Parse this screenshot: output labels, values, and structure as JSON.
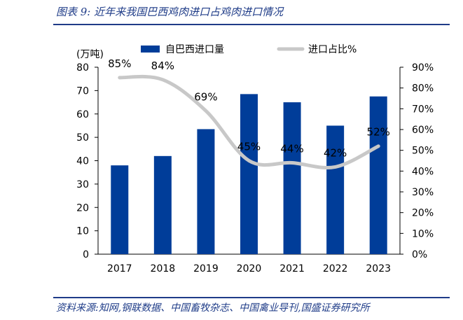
{
  "figure": {
    "title": "图表 9:  近年来我国巴西鸡肉进口占鸡肉进口情况",
    "source": "资料来源:知网,钢联数据、中国畜牧杂志、中国禽业导刊,国盛证券研究所"
  },
  "chart_data": {
    "type": "bar",
    "categories": [
      "2017",
      "2018",
      "2019",
      "2020",
      "2021",
      "2022",
      "2023"
    ],
    "y_unit_label": "(万吨)",
    "ylim": [
      0,
      80
    ],
    "y_ticks": [
      0,
      10,
      20,
      30,
      40,
      50,
      60,
      70,
      80
    ],
    "y2lim": [
      0,
      90
    ],
    "y2_ticks": [
      "0%",
      "10%",
      "20%",
      "30%",
      "40%",
      "50%",
      "60%",
      "70%",
      "80%",
      "90%"
    ],
    "grid": false,
    "legend_position": "top",
    "series": [
      {
        "name": "自巴西进口量",
        "type": "bar",
        "axis": "left",
        "color": "#003d99",
        "values": [
          38,
          42,
          53.5,
          68.5,
          65,
          55,
          67.5
        ]
      },
      {
        "name": "进口占比%",
        "type": "line",
        "axis": "right",
        "color": "#c8c8c8",
        "values": [
          85,
          84,
          69,
          45,
          44,
          42,
          52
        ],
        "labels": [
          "85%",
          "84%",
          "69%",
          "45%",
          "44%",
          "42%",
          "52%"
        ]
      }
    ]
  }
}
